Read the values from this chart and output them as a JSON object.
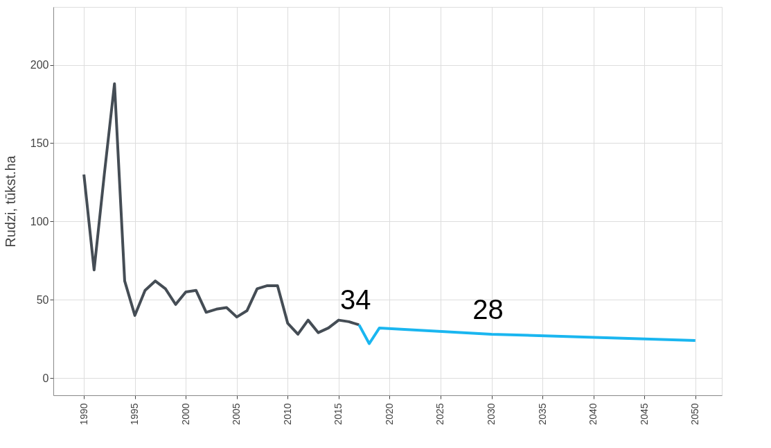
{
  "chart_data": {
    "type": "line",
    "ylabel": "Rudzi, tūkst.ha",
    "series": [
      {
        "color": "#454d55",
        "x": [
          1990,
          1991,
          1992,
          1993,
          1994,
          1995,
          1996,
          1997,
          1998,
          1999,
          2000,
          2001,
          2002,
          2003,
          2004,
          2005,
          2006,
          2007,
          2008,
          2009,
          2010,
          2011,
          2012,
          2013,
          2014,
          2015,
          2016,
          2017
        ],
        "values": [
          130,
          69,
          130,
          188,
          62,
          40,
          56,
          62,
          57,
          47,
          55,
          56,
          42,
          44,
          45,
          39,
          43,
          57,
          59,
          59,
          35,
          28,
          37,
          29,
          32,
          37,
          36,
          34
        ]
      },
      {
        "color": "#1ab6f0",
        "x": [
          2017,
          2018,
          2019,
          2030,
          2050
        ],
        "values": [
          34,
          22,
          32,
          28,
          24
        ]
      }
    ],
    "annotations": [
      {
        "text": "34",
        "x": 2017,
        "y": 34
      },
      {
        "text": "28",
        "x": 2030,
        "y": 28
      }
    ],
    "xlim": [
      1987,
      2052.6
    ],
    "xticks": [
      1990,
      1995,
      2000,
      2005,
      2010,
      2015,
      2020,
      2025,
      2030,
      2035,
      2040,
      2045,
      2050
    ],
    "ylim": [
      -11,
      237
    ],
    "yticks": [
      0,
      50,
      100,
      150,
      200
    ],
    "grid": true,
    "legend": false
  }
}
